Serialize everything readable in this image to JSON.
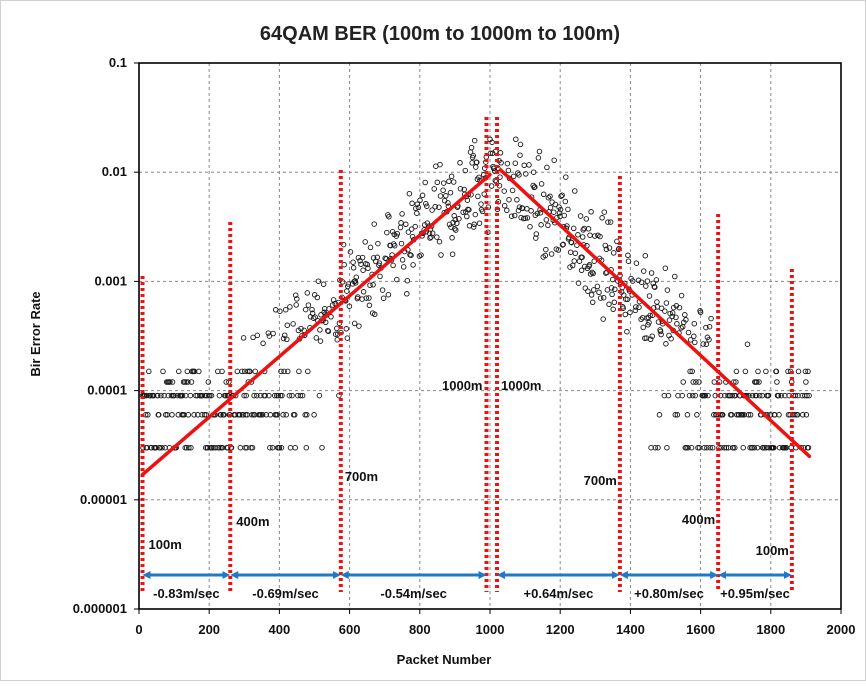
{
  "chart_data": {
    "type": "scatter",
    "title": "64QAM BER (100m to 1000m to 100m)",
    "xlabel": "Packet Number",
    "ylabel": "Bir Error Rate",
    "xlim": [
      0,
      2000
    ],
    "ylim": [
      1e-06,
      0.1
    ],
    "yscale": "log",
    "grid": true,
    "x_ticks": [
      "0",
      "200",
      "400",
      "600",
      "800",
      "1000",
      "1200",
      "1400",
      "1600",
      "1800",
      "2000"
    ],
    "y_ticks": [
      "0.1",
      "0.01",
      "0.001",
      "0.0001",
      "0.00001",
      "0.000001"
    ],
    "scatter_series": {
      "name": "",
      "description": "dense cloud of measured BER values per packet",
      "quantized_levels": [
        3e-05,
        6e-05,
        9e-05,
        0.00012,
        0.00015,
        0.00018,
        0.00021,
        0.00024
      ],
      "peak_x": 1000,
      "peak_y": 0.009
    },
    "fit_lines": [
      {
        "x": [
          10,
          1000
        ],
        "y": [
          1.7e-05,
          0.0095
        ]
      },
      {
        "x": [
          1030,
          1910
        ],
        "y": [
          0.0105,
          2.5e-05
        ]
      }
    ],
    "markers": [
      {
        "x": 10,
        "label": "100m"
      },
      {
        "x": 260,
        "label": "400m"
      },
      {
        "x": 575,
        "label": "700m"
      },
      {
        "x": 990,
        "label": "1000m"
      },
      {
        "x": 1020,
        "label": "1000m"
      },
      {
        "x": 1370,
        "label": "700m"
      },
      {
        "x": 1650,
        "label": "400m"
      },
      {
        "x": 1860,
        "label": "100m"
      }
    ],
    "speed_segments": [
      {
        "from": 10,
        "to": 260,
        "label": "-0.83m/sec"
      },
      {
        "from": 260,
        "to": 575,
        "label": "-0.69m/sec"
      },
      {
        "from": 575,
        "to": 990,
        "label": "-0.54m/sec"
      },
      {
        "from": 1020,
        "to": 1370,
        "label": "+0.64m/sec"
      },
      {
        "from": 1370,
        "to": 1650,
        "label": "+0.80m/sec"
      },
      {
        "from": 1650,
        "to": 1860,
        "label": "+0.95m/sec"
      }
    ],
    "colors": {
      "points": "#1a1a1a",
      "fit_line": "#ee1111",
      "marker": "#ee1111",
      "arrow": "#1f78c8",
      "grid": "#888888"
    }
  }
}
